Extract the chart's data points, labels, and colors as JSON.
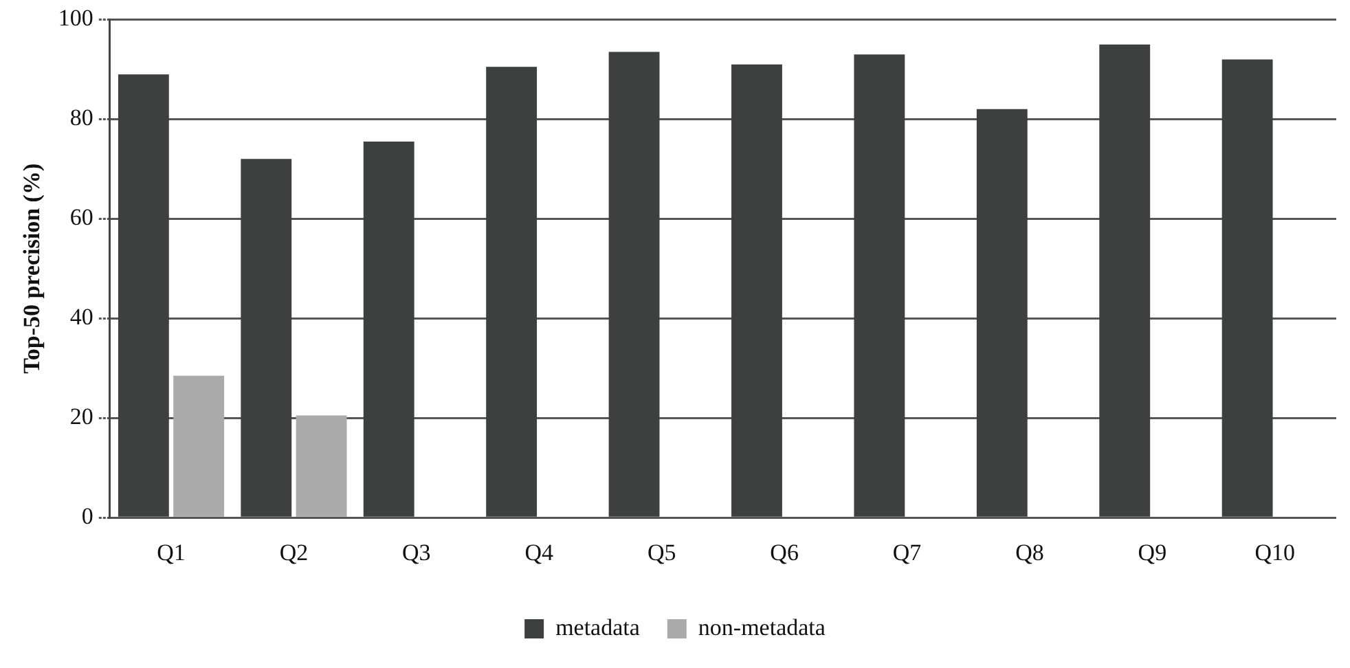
{
  "chart_data": {
    "type": "bar",
    "ylabel": "Top-50 precision (%)",
    "categories": [
      "Q1",
      "Q2",
      "Q3",
      "Q4",
      "Q5",
      "Q6",
      "Q7",
      "Q8",
      "Q9",
      "Q10"
    ],
    "series": [
      {
        "name": "metadata",
        "color": "#3d403f",
        "values": [
          89,
          72,
          75.5,
          90.5,
          93.5,
          91,
          93,
          82,
          95,
          92
        ]
      },
      {
        "name": "non-metadata",
        "color": "#a9aaa9",
        "values": [
          28.5,
          20.5,
          null,
          null,
          null,
          null,
          null,
          null,
          null,
          null
        ]
      }
    ],
    "ylim": [
      0,
      100
    ],
    "yticks": [
      0,
      20,
      40,
      60,
      80,
      100
    ],
    "grid": "y",
    "legend": "bottom"
  }
}
